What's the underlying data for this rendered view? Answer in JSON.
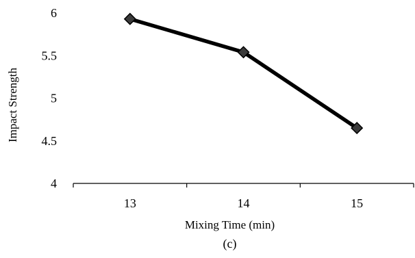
{
  "chart_data": {
    "type": "line",
    "title": "",
    "xlabel": "Mixing Time (min)",
    "ylabel": "Impact Strength",
    "caption": "(c)",
    "x": [
      13,
      14,
      15
    ],
    "categories": [
      "13",
      "14",
      "15"
    ],
    "series": [
      {
        "values": [
          5.93,
          5.54,
          4.65
        ]
      }
    ],
    "ylim": [
      4,
      6
    ],
    "yticks": [
      4,
      4.5,
      5,
      5.5,
      6
    ],
    "ytick_labels": [
      "4",
      "4.5",
      "5",
      "5.5",
      "6"
    ],
    "grid": false,
    "legend": "none",
    "marker": "diamond",
    "line_color": "#000000",
    "marker_fill": "#3a3a3a"
  }
}
